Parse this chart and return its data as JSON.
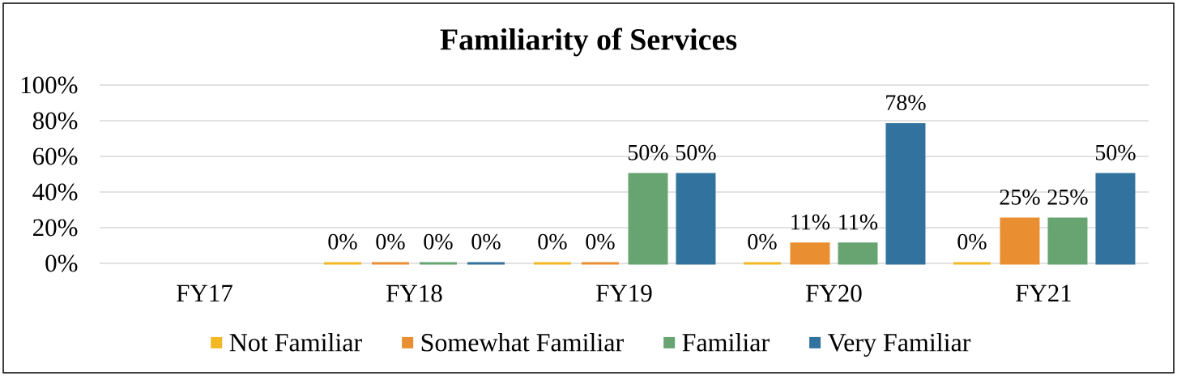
{
  "chart_data": {
    "type": "bar",
    "title": "Familiarity of Services",
    "categories": [
      "FY17",
      "FY18",
      "FY19",
      "FY20",
      "FY21"
    ],
    "series": [
      {
        "name": "Not Familiar",
        "color": "#f1b823",
        "values": [
          null,
          0,
          0,
          0,
          0
        ],
        "value_labels": [
          null,
          "0%",
          "0%",
          "0%",
          "0%"
        ]
      },
      {
        "name": "Somewhat Familiar",
        "color": "#e98f31",
        "values": [
          null,
          0,
          0,
          11,
          25
        ],
        "value_labels": [
          null,
          "0%",
          "0%",
          "11%",
          "25%"
        ]
      },
      {
        "name": "Familiar",
        "color": "#67a471",
        "values": [
          null,
          0,
          50,
          11,
          25
        ],
        "value_labels": [
          null,
          "0%",
          "50%",
          "11%",
          "25%"
        ]
      },
      {
        "name": "Very Familiar",
        "color": "#31739e",
        "values": [
          null,
          0,
          50,
          78,
          50
        ],
        "value_labels": [
          null,
          "0%",
          "50%",
          "78%",
          "50%"
        ]
      }
    ],
    "ylim": [
      0,
      100
    ],
    "yticks": [
      {
        "value": 0,
        "label": "0%"
      },
      {
        "value": 20,
        "label": "20%"
      },
      {
        "value": 40,
        "label": "40%"
      },
      {
        "value": 60,
        "label": "60%"
      },
      {
        "value": 80,
        "label": "80%"
      },
      {
        "value": 100,
        "label": "100%"
      }
    ],
    "grid": "y",
    "legend": "bottom"
  }
}
